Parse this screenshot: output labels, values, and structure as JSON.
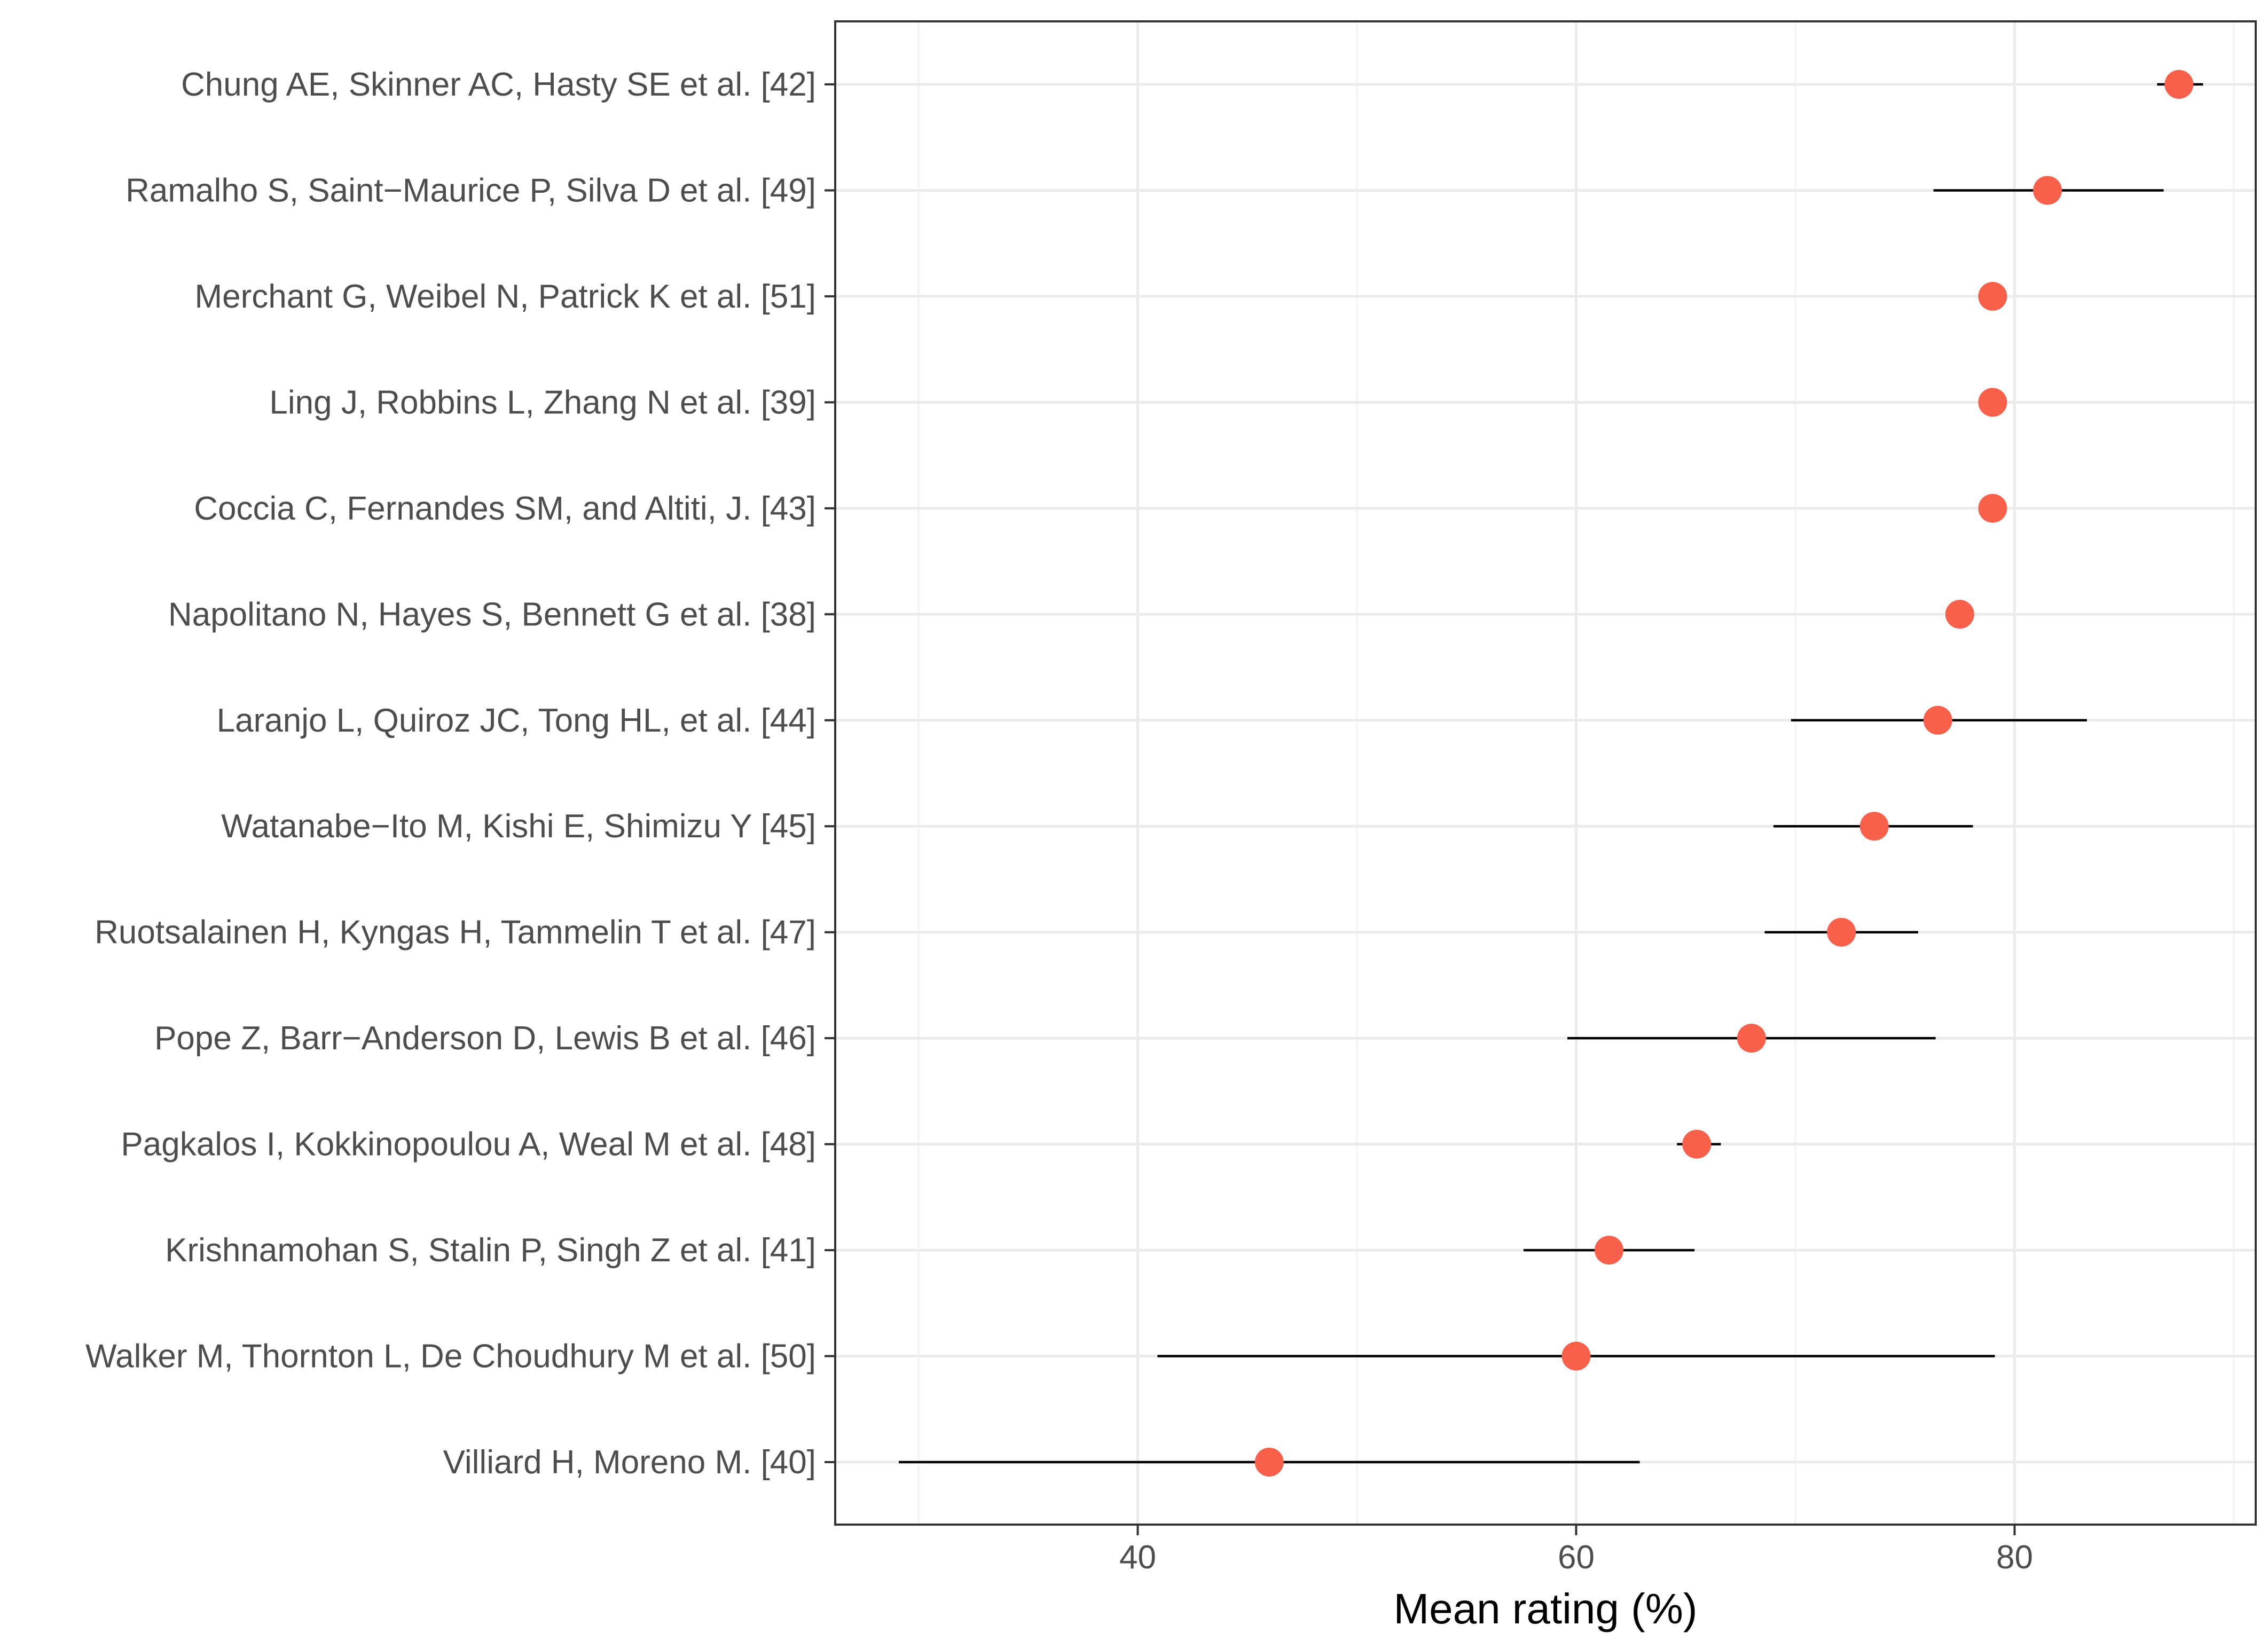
{
  "chart_data": {
    "type": "scatter",
    "title": "",
    "xlabel": "Mean rating (%)",
    "ylabel": "",
    "xlim": [
      26.2,
      91.0
    ],
    "x_ticks": [
      40,
      60,
      80
    ],
    "x_tick_labels": [
      "40",
      "60",
      "80"
    ],
    "grid": true,
    "point_color": "#f8604a",
    "errorbar_color": "#000000",
    "studies": [
      {
        "label": "Chung AE, Skinner AC, Hasty SE et al. [42]",
        "mean": 87.5,
        "low": 86.5,
        "high": 88.6
      },
      {
        "label": "Ramalho S, Saint−Maurice P, Silva D et al. [49]",
        "mean": 81.5,
        "low": 76.3,
        "high": 86.8
      },
      {
        "label": "Merchant G, Weibel N, Patrick K et al. [51]",
        "mean": 79.0,
        "low": 78.4,
        "high": 79.6
      },
      {
        "label": "Ling J, Robbins L, Zhang N et al. [39]",
        "mean": 79.0,
        "low": 78.4,
        "high": 79.6
      },
      {
        "label": "Coccia C, Fernandes SM, and Altiti, J. [43]",
        "mean": 79.0,
        "low": 78.4,
        "high": 79.6
      },
      {
        "label": "Napolitano N, Hayes S, Bennett G et al. [38]",
        "mean": 77.5,
        "low": 77.1,
        "high": 77.9
      },
      {
        "label": "Laranjo L, Quiroz JC, Tong HL, et al. [44]",
        "mean": 76.5,
        "low": 69.8,
        "high": 83.3
      },
      {
        "label": "Watanabe−Ito M, Kishi E, Shimizu Y [45]",
        "mean": 73.6,
        "low": 69.0,
        "high": 78.1
      },
      {
        "label": "Ruotsalainen H, Kyngas H, Tammelin T et al. [47]",
        "mean": 72.1,
        "low": 68.6,
        "high": 75.6
      },
      {
        "label": "Pope Z, Barr−Anderson D, Lewis B et al. [46]",
        "mean": 68.0,
        "low": 59.6,
        "high": 76.4
      },
      {
        "label": "Pagkalos I, Kokkinopoulou A, Weal M et al. [48]",
        "mean": 65.5,
        "low": 64.6,
        "high": 66.6
      },
      {
        "label": "Krishnamohan S, Stalin P, Singh Z et al. [41]",
        "mean": 61.5,
        "low": 57.6,
        "high": 65.4
      },
      {
        "label": "Walker M, Thornton L, De Choudhury M et al. [50]",
        "mean": 60.0,
        "low": 40.9,
        "high": 79.1
      },
      {
        "label": "Villiard H, Moreno M. [40]",
        "mean": 46.0,
        "low": 29.1,
        "high": 62.9
      }
    ]
  }
}
